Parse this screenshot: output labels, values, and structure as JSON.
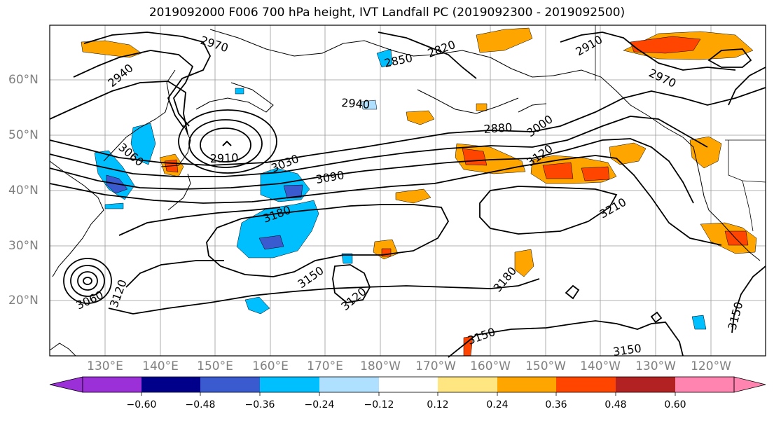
{
  "title": "2019092000 F006 700 hPa height, IVT Landfall PC (2019092300 - 2019092500)",
  "lat_labels": [
    "60°N",
    "50°N",
    "40°N",
    "30°N",
    "20°N"
  ],
  "lon_labels": [
    "130°E",
    "140°E",
    "150°E",
    "160°E",
    "170°E",
    "180°W",
    "170°W",
    "160°W",
    "150°W",
    "140°W",
    "130°W",
    "120°W"
  ],
  "colorbar": {
    "ticks": [
      "−0.60",
      "−0.48",
      "−0.36",
      "−0.24",
      "−0.12",
      "0.12",
      "0.24",
      "0.36",
      "0.48",
      "0.60"
    ],
    "colors": [
      "#9b30d9",
      "#00008b",
      "#3a5bd0",
      "#00bfff",
      "#b0e0ff",
      "#ffffff",
      "#ffe680",
      "#ffa500",
      "#ff4500",
      "#b22222",
      "#ff85b0"
    ]
  },
  "contour_labels": [
    "2970",
    "2940",
    "2820",
    "2850",
    "2910",
    "2970",
    "2940",
    "2880",
    "3000",
    "3060",
    "2910",
    "3030",
    "3090",
    "3120",
    "3180",
    "3210",
    "3150",
    "3120",
    "3180",
    "3060",
    "3120",
    "3150",
    "3150",
    "3150"
  ]
}
